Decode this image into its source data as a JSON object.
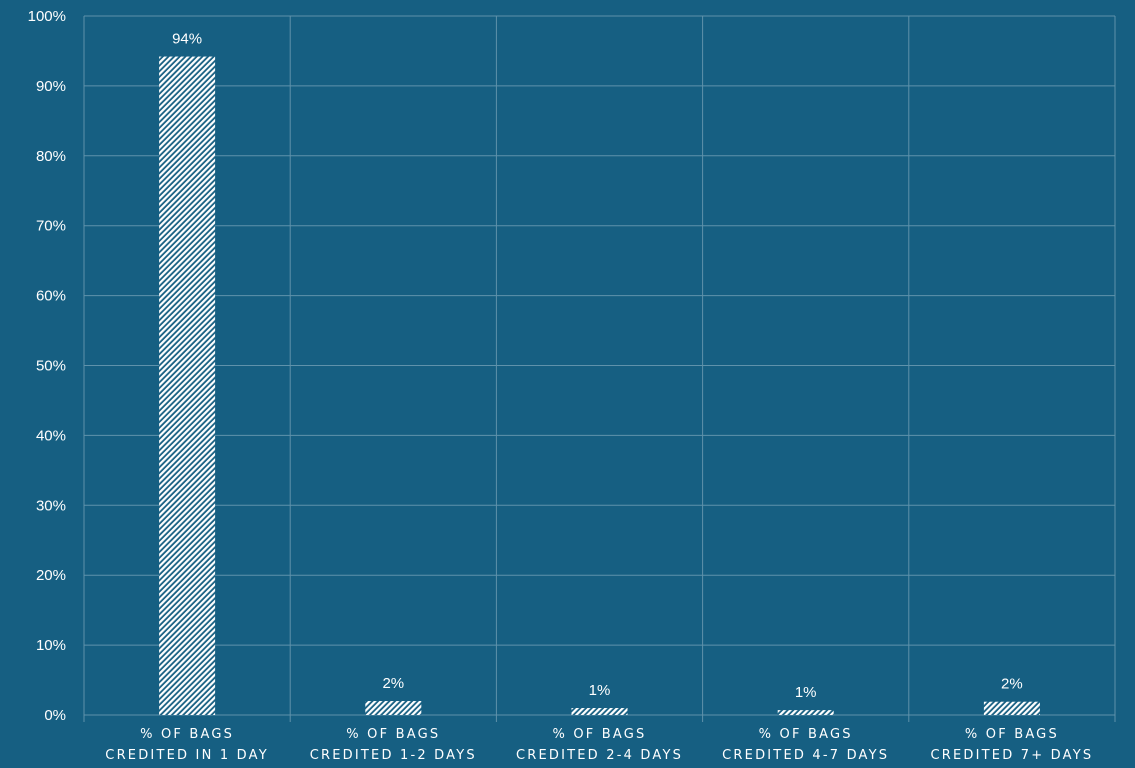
{
  "chart_data": {
    "type": "bar",
    "title": "",
    "xlabel": "",
    "ylabel": "",
    "ylim": [
      0,
      100
    ],
    "yticks": [
      0,
      10,
      20,
      30,
      40,
      50,
      60,
      70,
      80,
      90,
      100
    ],
    "ytick_labels": [
      "0%",
      "10%",
      "20%",
      "30%",
      "40%",
      "50%",
      "60%",
      "70%",
      "80%",
      "90%",
      "100%"
    ],
    "categories": [
      [
        "% OF BAGS",
        "CREDITED IN 1 DAY"
      ],
      [
        "% OF BAGS",
        "CREDITED 1-2 DAYS"
      ],
      [
        "% OF BAGS",
        "CREDITED 2-4 DAYS"
      ],
      [
        "% OF BAGS",
        "CREDITED 4-7 DAYS"
      ],
      [
        "% OF BAGS",
        "CREDITED 7+ DAYS"
      ]
    ],
    "values": [
      94.2,
      2.0,
      1.0,
      0.7,
      1.9
    ],
    "data_labels": [
      "94%",
      "2%",
      "1%",
      "1%",
      "2%"
    ],
    "grid": true,
    "bar_fill": "hatched",
    "colors": {
      "background": "#165f82",
      "gridline": "#5f92ab",
      "bar": "#ffffff",
      "text": "#ffffff"
    }
  }
}
